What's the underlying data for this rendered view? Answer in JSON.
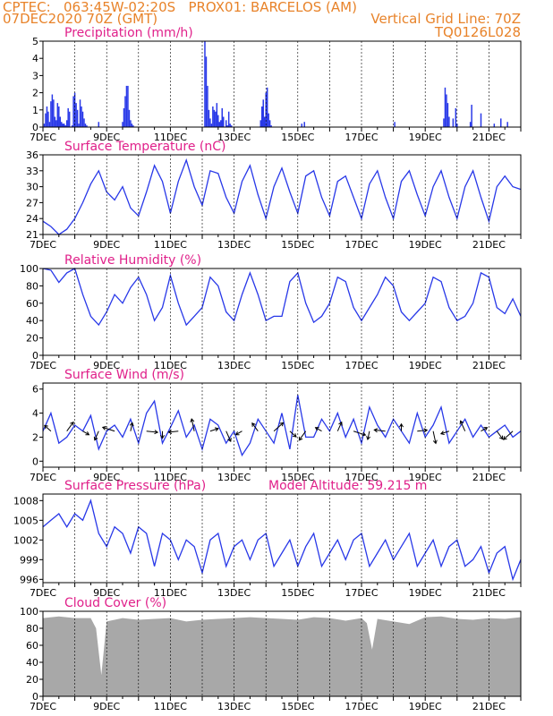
{
  "header": {
    "line1_left": "CPTEC:   063:45W-02:20S   PROX01: BARCELOS (AM)",
    "line2_left": "07DEC2020 70Z (GMT)",
    "line2_right": "Vertical Grid Line: 70Z",
    "line3_right": "TQ0126L028"
  },
  "x_labels": [
    "7DEC",
    "9DEC",
    "11DEC",
    "13DEC",
    "15DEC",
    "17DEC",
    "19DEC",
    "21DEC"
  ],
  "x_label_hours": [
    0,
    48,
    96,
    144,
    192,
    240,
    288,
    336
  ],
  "x_range_hours": [
    0,
    360
  ],
  "series_color": "#2838e8",
  "cloud_color": "#a8a8a8",
  "chart_data": [
    {
      "type": "bar",
      "title": "Precipitation (mm/h)",
      "ylim": [
        0,
        5
      ],
      "yticks": [
        0,
        1,
        2,
        3,
        4,
        5
      ],
      "x": [
        1,
        2,
        3,
        4,
        5,
        6,
        7,
        8,
        9,
        10,
        11,
        12,
        13,
        14,
        15,
        16,
        17,
        18,
        19,
        20,
        22,
        23,
        24,
        25,
        26,
        27,
        28,
        29,
        30,
        31,
        32,
        33,
        42,
        60,
        61,
        62,
        63,
        64,
        65,
        66,
        67,
        68,
        122,
        123,
        124,
        125,
        126,
        127,
        128,
        129,
        130,
        131,
        132,
        133,
        134,
        135,
        136,
        138,
        139,
        140,
        141,
        142,
        164,
        165,
        166,
        167,
        168,
        169,
        170,
        171,
        172,
        195,
        197,
        265,
        302,
        303,
        304,
        305,
        306,
        309,
        311,
        312,
        322,
        323,
        330,
        340,
        345,
        350
      ],
      "values": [
        0.2,
        0.8,
        1.2,
        0.9,
        0.3,
        1.5,
        1.9,
        1.6,
        0.6,
        0.4,
        1.4,
        1.2,
        0.6,
        0.3,
        0.2,
        0.2,
        0.1,
        0.4,
        1.1,
        0.9,
        0.1,
        1.8,
        2.0,
        1.4,
        1.0,
        0.2,
        1.6,
        1.2,
        0.9,
        0.5,
        0.2,
        0.1,
        0.3,
        0.3,
        1.1,
        1.8,
        2.4,
        2.4,
        1.0,
        0.4,
        0.2,
        0.1,
        5.0,
        4.1,
        2.4,
        1.0,
        0.5,
        0.2,
        1.2,
        1.0,
        0.9,
        1.4,
        0.7,
        0.3,
        0.4,
        1.1,
        0.6,
        0.4,
        0.1,
        0.9,
        0.2,
        0.1,
        0.4,
        1.2,
        1.6,
        0.6,
        2.0,
        2.3,
        0.8,
        0.4,
        0.1,
        0.2,
        0.3,
        0.3,
        0.5,
        2.3,
        1.9,
        1.4,
        0.6,
        0.5,
        1.1,
        0.2,
        0.3,
        1.3,
        0.8,
        0.2,
        0.5,
        0.3
      ]
    },
    {
      "type": "line",
      "title": "Surface Temperature (nC)",
      "ylim": [
        21,
        36
      ],
      "yticks": [
        21,
        24,
        27,
        30,
        33,
        36
      ],
      "x": [
        0,
        6,
        12,
        18,
        24,
        30,
        36,
        42,
        48,
        54,
        60,
        66,
        72,
        78,
        84,
        90,
        96,
        102,
        108,
        114,
        120,
        126,
        132,
        138,
        144,
        150,
        156,
        162,
        168,
        174,
        180,
        186,
        192,
        198,
        204,
        210,
        216,
        222,
        228,
        234,
        240,
        246,
        252,
        258,
        264,
        270,
        276,
        282,
        288,
        294,
        300,
        306,
        312,
        318,
        324,
        330,
        336,
        342,
        348,
        354,
        360
      ],
      "values": [
        23.5,
        22.5,
        21.0,
        22.0,
        24.0,
        27.0,
        30.5,
        33.0,
        29.0,
        27.5,
        30.0,
        26.0,
        24.5,
        29.0,
        34.0,
        31.0,
        25.0,
        31.0,
        35.0,
        30.0,
        26.5,
        33.0,
        32.5,
        28.0,
        25.0,
        31.0,
        34.0,
        28.5,
        24.0,
        30.0,
        33.5,
        29.0,
        25.0,
        32.0,
        33.0,
        28.0,
        24.5,
        31.0,
        32.0,
        28.0,
        24.0,
        30.5,
        33.0,
        28.0,
        24.0,
        31.0,
        33.0,
        28.5,
        24.5,
        30.0,
        33.0,
        28.0,
        24.0,
        30.0,
        33.0,
        28.0,
        23.5,
        30.0,
        32.0,
        30.0,
        29.5
      ]
    },
    {
      "type": "line",
      "title": "Relative Humidity (%)",
      "ylim": [
        0,
        100
      ],
      "yticks": [
        0,
        20,
        40,
        60,
        80,
        100
      ],
      "x": [
        0,
        6,
        12,
        18,
        24,
        30,
        36,
        42,
        48,
        54,
        60,
        66,
        72,
        78,
        84,
        90,
        96,
        102,
        108,
        114,
        120,
        126,
        132,
        138,
        144,
        150,
        156,
        162,
        168,
        174,
        180,
        186,
        192,
        198,
        204,
        210,
        216,
        222,
        228,
        234,
        240,
        246,
        252,
        258,
        264,
        270,
        276,
        282,
        288,
        294,
        300,
        306,
        312,
        318,
        324,
        330,
        336,
        342,
        348,
        354,
        360
      ],
      "values": [
        100,
        98,
        84,
        95,
        100,
        70,
        45,
        35,
        50,
        70,
        60,
        78,
        90,
        70,
        40,
        55,
        92,
        60,
        35,
        45,
        55,
        90,
        80,
        50,
        40,
        70,
        95,
        70,
        40,
        45,
        45,
        85,
        95,
        60,
        38,
        45,
        60,
        90,
        85,
        55,
        40,
        55,
        70,
        90,
        80,
        50,
        40,
        50,
        60,
        90,
        85,
        55,
        40,
        45,
        60,
        95,
        90,
        55,
        48,
        65,
        45
      ]
    },
    {
      "type": "line",
      "title": "Surface Wind (m/s)",
      "ylim": [
        -0.5,
        6.5
      ],
      "yticks": [
        0,
        2,
        4,
        6
      ],
      "x": [
        0,
        6,
        12,
        18,
        24,
        30,
        36,
        42,
        48,
        54,
        60,
        66,
        72,
        78,
        84,
        90,
        96,
        102,
        108,
        114,
        120,
        126,
        132,
        138,
        144,
        150,
        156,
        162,
        168,
        174,
        180,
        186,
        192,
        198,
        204,
        210,
        216,
        222,
        228,
        234,
        240,
        246,
        252,
        258,
        264,
        270,
        276,
        282,
        288,
        294,
        300,
        306,
        312,
        318,
        324,
        330,
        336,
        342,
        348,
        354,
        360
      ],
      "values": [
        2.5,
        4.0,
        1.5,
        2.0,
        3.0,
        2.5,
        3.8,
        1.0,
        2.5,
        3.0,
        2.0,
        3.5,
        1.5,
        4.0,
        5.0,
        1.5,
        2.8,
        4.2,
        2.0,
        3.0,
        1.0,
        3.5,
        3.0,
        1.5,
        2.5,
        0.5,
        1.5,
        3.5,
        2.5,
        1.5,
        4.0,
        1.0,
        5.5,
        2.0,
        2.0,
        3.5,
        2.5,
        4.0,
        2.0,
        3.5,
        1.5,
        4.5,
        3.0,
        2.0,
        3.5,
        2.5,
        1.5,
        4.0,
        2.0,
        3.0,
        4.5,
        1.5,
        2.5,
        3.5,
        2.0,
        3.0,
        2.0,
        2.5,
        3.0,
        2.0,
        2.5
      ]
    },
    {
      "type": "line",
      "title": "Surface Pressure (hPa)",
      "annotation": "Model Altitude: 59.215 m",
      "ylim": [
        995.5,
        1009
      ],
      "yticks": [
        996,
        999,
        1002,
        1005,
        1008
      ],
      "x": [
        0,
        6,
        12,
        18,
        24,
        30,
        36,
        42,
        48,
        54,
        60,
        66,
        72,
        78,
        84,
        90,
        96,
        102,
        108,
        114,
        120,
        126,
        132,
        138,
        144,
        150,
        156,
        162,
        168,
        174,
        180,
        186,
        192,
        198,
        204,
        210,
        216,
        222,
        228,
        234,
        240,
        246,
        252,
        258,
        264,
        270,
        276,
        282,
        288,
        294,
        300,
        306,
        312,
        318,
        324,
        330,
        336,
        342,
        348,
        354,
        360
      ],
      "values": [
        1004,
        1005,
        1006,
        1004,
        1006,
        1005,
        1008,
        1003,
        1001,
        1004,
        1003,
        1000,
        1004,
        1003,
        998,
        1003,
        1002,
        999,
        1002,
        1001,
        997,
        1002,
        1003,
        998,
        1001,
        1002,
        999,
        1002,
        1003,
        998,
        1000,
        1002,
        998,
        1001,
        1003,
        998,
        1000,
        1002,
        999,
        1002,
        1003,
        998,
        1000,
        1002,
        999,
        1001,
        1003,
        998,
        1000,
        1002,
        998,
        1001,
        1002,
        998,
        999,
        1001,
        997,
        1000,
        1001,
        996,
        999
      ]
    },
    {
      "type": "area",
      "title": "Cloud Cover (%)",
      "ylim": [
        0,
        100
      ],
      "yticks": [
        0,
        20,
        40,
        60,
        80,
        100
      ],
      "x": [
        0,
        12,
        24,
        36,
        40,
        44,
        48,
        60,
        72,
        84,
        96,
        108,
        120,
        132,
        144,
        156,
        168,
        180,
        192,
        204,
        216,
        228,
        240,
        244,
        248,
        252,
        264,
        276,
        288,
        300,
        312,
        324,
        336,
        348,
        360
      ],
      "values": [
        92,
        94,
        92,
        92,
        80,
        25,
        88,
        92,
        90,
        91,
        92,
        88,
        90,
        91,
        92,
        93,
        92,
        91,
        90,
        93,
        92,
        89,
        92,
        86,
        55,
        91,
        88,
        85,
        93,
        94,
        91,
        90,
        92,
        91,
        93
      ]
    }
  ]
}
